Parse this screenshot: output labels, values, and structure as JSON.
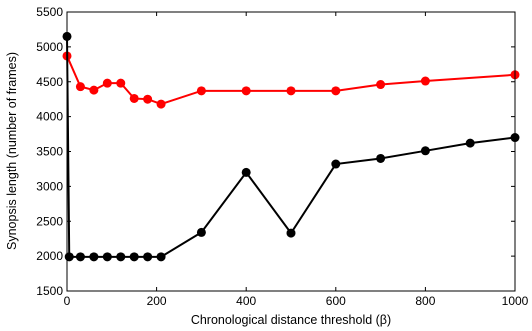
{
  "chart_data": {
    "type": "line",
    "title": "",
    "xlabel": "Chronological distance threshold (β)",
    "ylabel": "Synopsis length (number of frames)",
    "xlim": [
      0,
      1000
    ],
    "ylim": [
      1500,
      5500
    ],
    "xticks": [
      0,
      200,
      400,
      600,
      800,
      1000
    ],
    "yticks": [
      1500,
      2000,
      2500,
      3000,
      3500,
      4000,
      4500,
      5000,
      5500
    ],
    "grid": false,
    "legend": "none",
    "series": [
      {
        "color": "#ff0000",
        "x": [
          0,
          30,
          60,
          90,
          120,
          150,
          180,
          210,
          300,
          400,
          500,
          600,
          700,
          800,
          1000
        ],
        "y": [
          4870,
          4430,
          4380,
          4480,
          4480,
          4260,
          4250,
          4180,
          4370,
          4370,
          4370,
          4370,
          4460,
          4510,
          4600
        ]
      },
      {
        "color": "#000000",
        "x": [
          0,
          5,
          30,
          60,
          90,
          120,
          150,
          180,
          210,
          300,
          400,
          500,
          600,
          700,
          800,
          900,
          1000
        ],
        "y": [
          5150,
          1990,
          1990,
          1990,
          1990,
          1990,
          1990,
          1990,
          1990,
          2340,
          3200,
          2330,
          3320,
          3400,
          3510,
          3620,
          3700
        ]
      }
    ]
  }
}
